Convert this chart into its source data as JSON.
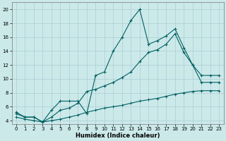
{
  "xlabel": "Humidex (Indice chaleur)",
  "bg_color": "#cce9ea",
  "grid_color": "#aacdd4",
  "line_color": "#006060",
  "xlim": [
    -0.5,
    23.5
  ],
  "ylim": [
    3.5,
    21
  ],
  "xticks": [
    0,
    1,
    2,
    3,
    4,
    5,
    6,
    7,
    8,
    9,
    10,
    11,
    12,
    13,
    14,
    15,
    16,
    17,
    18,
    19,
    20,
    21,
    22,
    23
  ],
  "yticks": [
    4,
    6,
    8,
    10,
    12,
    14,
    16,
    18,
    20
  ],
  "series1_x": [
    0,
    1,
    2,
    3,
    4,
    5,
    6,
    7,
    8,
    9,
    10,
    11,
    12,
    13,
    14,
    15,
    16,
    17,
    18,
    19,
    20,
    21,
    22,
    23
  ],
  "series1_y": [
    5.2,
    4.5,
    4.5,
    3.8,
    5.5,
    6.8,
    6.8,
    6.8,
    5.0,
    10.5,
    11.0,
    14.0,
    16.0,
    18.4,
    20.0,
    15.0,
    15.5,
    16.2,
    17.2,
    14.5,
    12.0,
    9.5,
    9.5,
    9.5
  ],
  "series2_x": [
    0,
    1,
    2,
    3,
    4,
    5,
    6,
    7,
    8,
    9,
    10,
    11,
    12,
    13,
    14,
    15,
    16,
    17,
    18,
    19,
    20,
    21,
    22,
    23
  ],
  "series2_y": [
    5.0,
    4.5,
    4.5,
    3.8,
    4.5,
    5.5,
    5.8,
    6.5,
    8.2,
    8.5,
    9.0,
    9.5,
    10.2,
    11.0,
    12.5,
    13.8,
    14.2,
    15.0,
    16.5,
    13.8,
    12.0,
    10.5,
    10.5,
    10.5
  ],
  "series3_x": [
    0,
    1,
    2,
    3,
    4,
    5,
    6,
    7,
    8,
    9,
    10,
    11,
    12,
    13,
    14,
    15,
    16,
    17,
    18,
    19,
    20,
    21,
    22,
    23
  ],
  "series3_y": [
    4.5,
    4.2,
    4.0,
    3.8,
    4.0,
    4.2,
    4.5,
    4.8,
    5.2,
    5.5,
    5.8,
    6.0,
    6.2,
    6.5,
    6.8,
    7.0,
    7.2,
    7.5,
    7.8,
    8.0,
    8.2,
    8.3,
    8.3,
    8.3
  ]
}
